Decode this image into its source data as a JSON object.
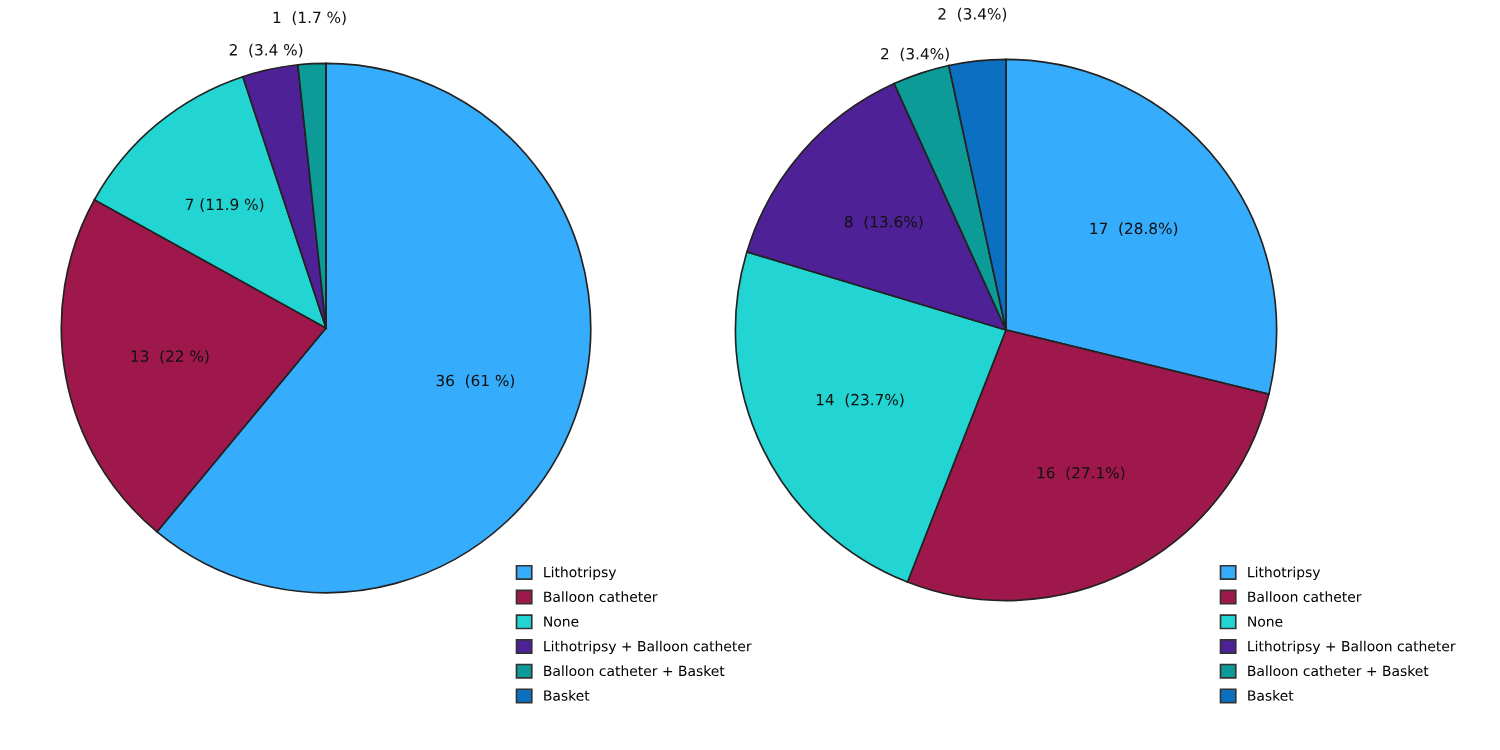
{
  "chart_data": [
    {
      "type": "pie",
      "categories": [
        "Lithotripsy",
        "Balloon catheter",
        "None",
        "Lithotripsy + Balloon catheter",
        "Balloon catheter + Basket",
        "Basket"
      ],
      "values": [
        36,
        13,
        7,
        2,
        1,
        0
      ],
      "colors": [
        "#36acfc",
        "#9f184b",
        "#22d5d2",
        "#4e2196",
        "#0c9b97",
        "#0b6fc2"
      ],
      "value_labels": [
        "36  (61 %)",
        "13  (22 %)",
        "7 (11.9 %)",
        "2  (3.4 %)",
        "1  (1.7 %)",
        null
      ],
      "legend": "bottom right"
    },
    {
      "type": "pie",
      "categories": [
        "Lithotripsy",
        "Balloon catheter",
        "None",
        "Lithotripsy + Balloon catheter",
        "Balloon catheter + Basket",
        "Basket"
      ],
      "values": [
        17,
        16,
        14,
        8,
        2,
        2
      ],
      "colors": [
        "#36acfc",
        "#9f184b",
        "#22d5d2",
        "#4e2196",
        "#0c9b97",
        "#0b6fc2"
      ],
      "value_labels": [
        "17  (28.8%)",
        "16  (27.1%)",
        "14  (23.7%)",
        "8  (13.6%)",
        "2  (3.4%)",
        "2  (3.4%)"
      ],
      "legend": "bottom right"
    }
  ]
}
